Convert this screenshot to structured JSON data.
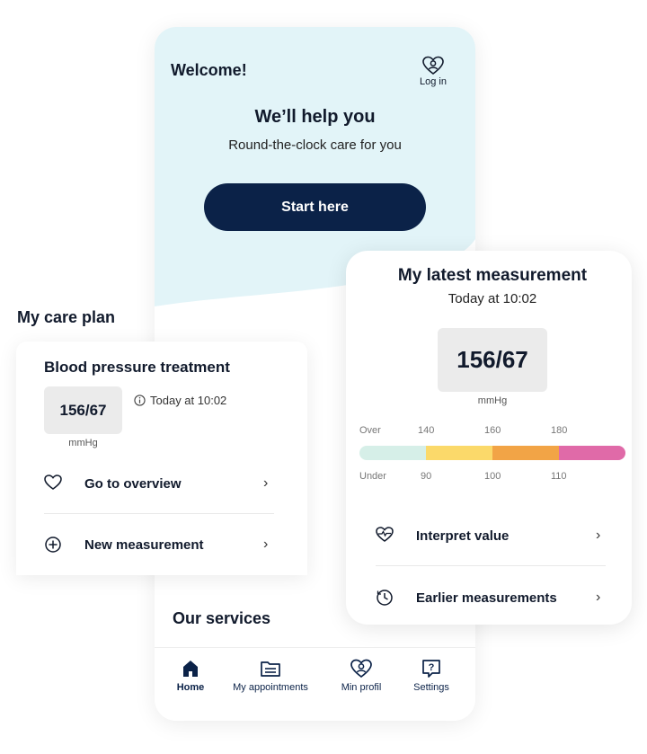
{
  "app": {
    "welcome": "Welcome!",
    "login_label": "Log in",
    "hero_title": "We’ll help you",
    "hero_subtitle": "Round-the-clock care for you",
    "start_button": "Start here",
    "services_title": "Our services"
  },
  "tabs": [
    {
      "label": "Home",
      "icon": "home-icon",
      "active": true
    },
    {
      "label": "My appointments",
      "icon": "appointments-icon",
      "active": false
    },
    {
      "label": "Min profil",
      "icon": "profile-icon",
      "active": false
    },
    {
      "label": "Settings",
      "icon": "settings-icon",
      "active": false
    }
  ],
  "care_plan": {
    "title": "My care plan",
    "treatment": "Blood pressure treatment",
    "value": "156/67",
    "unit": "mmHg",
    "time": "Today at 10:02",
    "actions": [
      {
        "label": "Go to overview",
        "icon": "heart-icon"
      },
      {
        "label": "New measurement",
        "icon": "plus-circle-icon"
      }
    ]
  },
  "measurement": {
    "title": "My latest measurement",
    "time": "Today at 10:02",
    "value": "156/67",
    "unit": "mmHg",
    "scale": {
      "over_label": "Over",
      "under_label": "Under",
      "over_ticks": [
        "140",
        "160",
        "180"
      ],
      "under_ticks": [
        "90",
        "100",
        "110"
      ],
      "colors": [
        "#d6efe8",
        "#fbd96a",
        "#f2a446",
        "#e06aa8"
      ]
    },
    "actions": [
      {
        "label": "Interpret value",
        "icon": "heart-pulse-icon"
      },
      {
        "label": "Earlier measurements",
        "icon": "clock-icon"
      }
    ]
  },
  "colors": {
    "hero_bg": "#e2f4f8",
    "primary": "#0b2248"
  }
}
